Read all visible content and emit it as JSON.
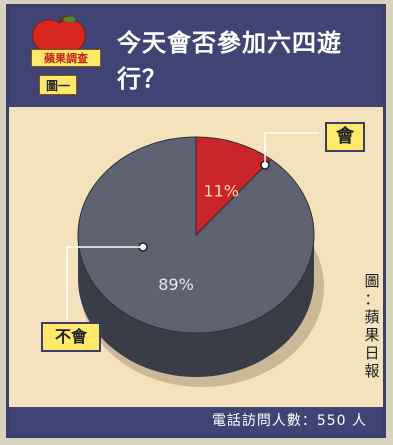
{
  "header": {
    "logo_text": "蘋果調查",
    "figure_label": "圖一",
    "title": "今天會否參加六四遊行？"
  },
  "chart_data": {
    "type": "pie",
    "categories": [
      "會",
      "不會"
    ],
    "values": [
      11,
      89
    ],
    "value_labels": [
      "11%",
      "89%"
    ],
    "colors": {
      "會": "#c9252b",
      "不會": "#5f6270"
    }
  },
  "credit": "圖：蘋果日報",
  "footer": {
    "respondents_text": "電話訪問人數：550 人"
  }
}
